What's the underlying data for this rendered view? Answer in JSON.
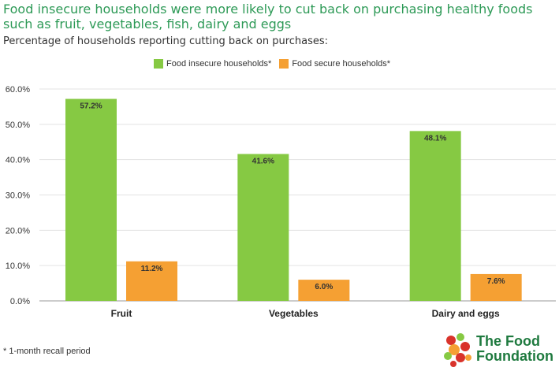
{
  "title": "Food insecure households were more likely to cut back on purchasing healthy foods such as fruit, vegetables, fish, dairy and eggs",
  "subtitle": "Percentage of households reporting cutting back on purchases:",
  "footnote": "* 1-month recall period",
  "logo": {
    "line1": "The Food",
    "line2": "Foundation",
    "icon": "berries-icon"
  },
  "colors": {
    "title": "#2e9a57",
    "insecure": "#86c943",
    "secure": "#f5a033"
  },
  "chart_data": {
    "type": "bar",
    "categories": [
      "Fruit",
      "Vegetables",
      "Dairy and eggs"
    ],
    "series": [
      {
        "name": "Food insecure households*",
        "values": [
          57.2,
          41.6,
          48.1
        ],
        "color": "#86c943"
      },
      {
        "name": "Food secure households*",
        "values": [
          11.2,
          6.0,
          7.6
        ],
        "color": "#f5a033"
      }
    ],
    "ylim": [
      0,
      60
    ],
    "yticks": [
      0,
      10,
      20,
      30,
      40,
      50,
      60
    ],
    "ytick_labels": [
      "0.0%",
      "10.0%",
      "20.0%",
      "30.0%",
      "40.0%",
      "50.0%",
      "60.0%"
    ],
    "data_labels": [
      [
        "57.2%",
        "41.6%",
        "48.1%"
      ],
      [
        "11.2%",
        "6.0%",
        "7.6%"
      ]
    ],
    "legend": "top",
    "grid": true
  }
}
